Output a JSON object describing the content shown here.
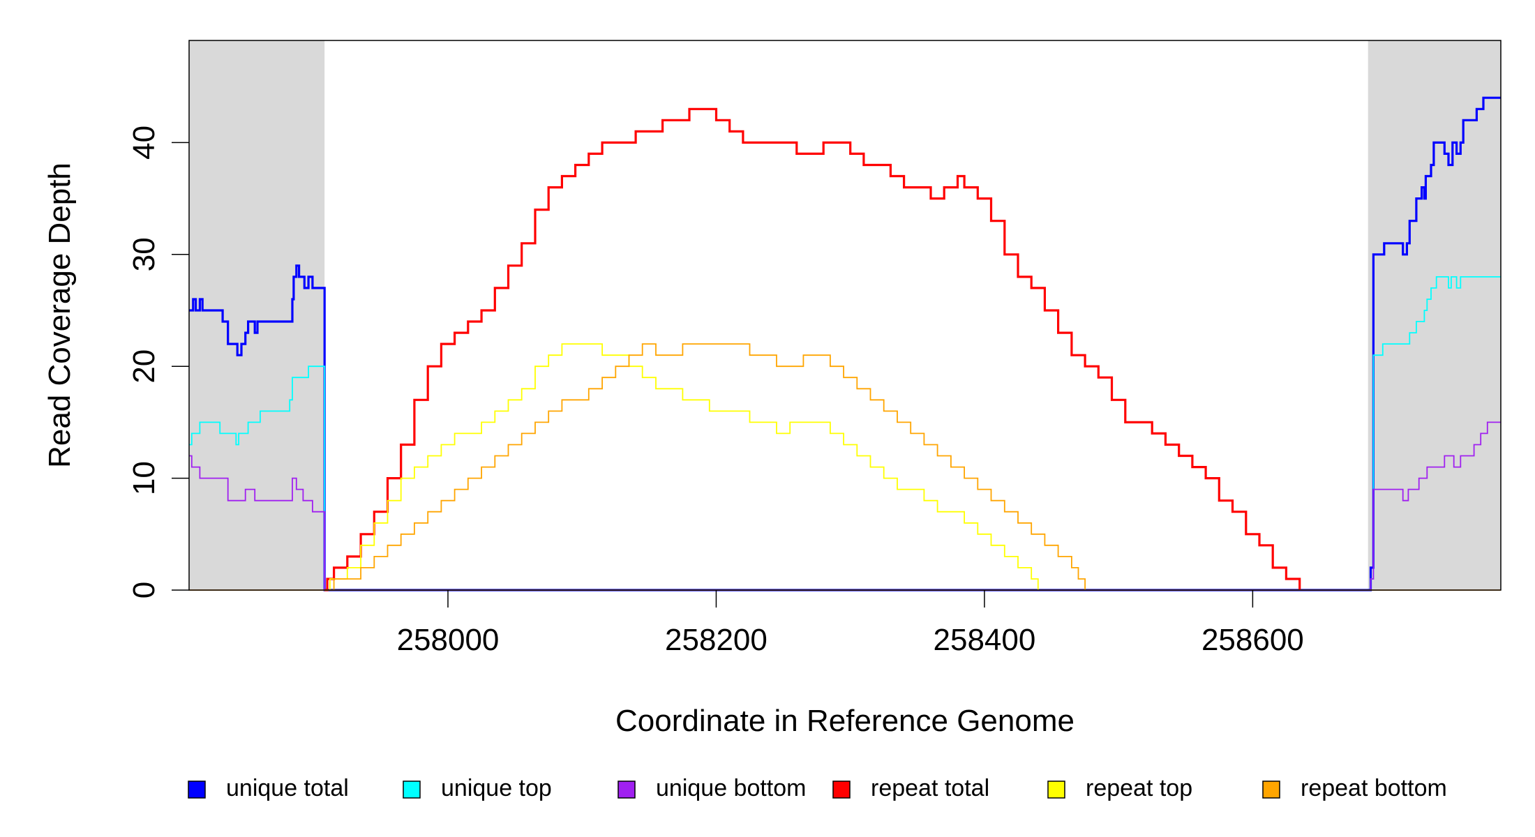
{
  "chart_data": {
    "type": "line",
    "step": true,
    "xlabel": "Coordinate in Reference Genome",
    "ylabel": "Read Coverage Depth",
    "xlim": [
      257807,
      258785
    ],
    "ylim": [
      0,
      49
    ],
    "x_ticks": [
      258000,
      258200,
      258400,
      258600
    ],
    "y_ticks": [
      0,
      10,
      20,
      30,
      40
    ],
    "shaded_regions": [
      {
        "from": 257807,
        "to": 257908,
        "color": "#d9d9d9"
      },
      {
        "from": 258686,
        "to": 258785,
        "color": "#d9d9d9"
      }
    ],
    "legend_position": "bottom",
    "series": [
      {
        "name": "unique total",
        "color": "#0000ff",
        "points": [
          [
            257807,
            25
          ],
          [
            257810,
            26
          ],
          [
            257812,
            25
          ],
          [
            257815,
            26
          ],
          [
            257817,
            25
          ],
          [
            257830,
            25
          ],
          [
            257832,
            24
          ],
          [
            257836,
            22
          ],
          [
            257843,
            21
          ],
          [
            257846,
            22
          ],
          [
            257849,
            23
          ],
          [
            257851,
            24
          ],
          [
            257856,
            23
          ],
          [
            257858,
            24
          ],
          [
            257882,
            24
          ],
          [
            257884,
            26
          ],
          [
            257885,
            28
          ],
          [
            257887,
            29
          ],
          [
            257889,
            28
          ],
          [
            257893,
            27
          ],
          [
            257896,
            28
          ],
          [
            257899,
            27
          ],
          [
            257902,
            27
          ],
          [
            257907,
            27
          ],
          [
            257908,
            0
          ],
          [
            258686,
            0
          ],
          [
            258688,
            2
          ],
          [
            258690,
            30
          ],
          [
            258695,
            30
          ],
          [
            258698,
            31
          ],
          [
            258710,
            31
          ],
          [
            258712,
            30
          ],
          [
            258715,
            31
          ],
          [
            258717,
            33
          ],
          [
            258720,
            33
          ],
          [
            258722,
            35
          ],
          [
            258726,
            36
          ],
          [
            258728,
            35
          ],
          [
            258729,
            37
          ],
          [
            258733,
            38
          ],
          [
            258735,
            40
          ],
          [
            258743,
            39
          ],
          [
            258746,
            38
          ],
          [
            258749,
            40
          ],
          [
            258752,
            39
          ],
          [
            258755,
            40
          ],
          [
            258757,
            42
          ],
          [
            258760,
            42
          ],
          [
            258765,
            42
          ],
          [
            258767,
            43
          ],
          [
            258770,
            43
          ],
          [
            258772,
            44
          ],
          [
            258775,
            44
          ],
          [
            258785,
            44
          ]
        ]
      },
      {
        "name": "unique top",
        "color": "#00ffff",
        "points": [
          [
            257807,
            13
          ],
          [
            257809,
            14
          ],
          [
            257815,
            15
          ],
          [
            257830,
            14
          ],
          [
            257842,
            13
          ],
          [
            257844,
            14
          ],
          [
            257851,
            15
          ],
          [
            257860,
            16
          ],
          [
            257882,
            17
          ],
          [
            257884,
            19
          ],
          [
            257896,
            20
          ],
          [
            257907,
            20
          ],
          [
            257908,
            0
          ],
          [
            258686,
            0
          ],
          [
            258688,
            1
          ],
          [
            258690,
            21
          ],
          [
            258697,
            22
          ],
          [
            258717,
            23
          ],
          [
            258722,
            24
          ],
          [
            258728,
            25
          ],
          [
            258730,
            26
          ],
          [
            258733,
            27
          ],
          [
            258737,
            28
          ],
          [
            258746,
            27
          ],
          [
            258748,
            28
          ],
          [
            258752,
            27
          ],
          [
            258755,
            28
          ],
          [
            258785,
            28
          ]
        ]
      },
      {
        "name": "unique bottom",
        "color": "#a020f0",
        "points": [
          [
            257807,
            12
          ],
          [
            257809,
            11
          ],
          [
            257815,
            10
          ],
          [
            257836,
            8
          ],
          [
            257849,
            9
          ],
          [
            257856,
            8
          ],
          [
            257882,
            8
          ],
          [
            257884,
            10
          ],
          [
            257887,
            9
          ],
          [
            257892,
            8
          ],
          [
            257899,
            7
          ],
          [
            257907,
            7
          ],
          [
            257908,
            0
          ],
          [
            258686,
            0
          ],
          [
            258688,
            1
          ],
          [
            258690,
            9
          ],
          [
            258710,
            9
          ],
          [
            258712,
            8
          ],
          [
            258716,
            9
          ],
          [
            258724,
            10
          ],
          [
            258730,
            11
          ],
          [
            258743,
            12
          ],
          [
            258750,
            11
          ],
          [
            258755,
            12
          ],
          [
            258765,
            13
          ],
          [
            258770,
            14
          ],
          [
            258775,
            15
          ],
          [
            258785,
            15
          ]
        ]
      },
      {
        "name": "repeat total",
        "color": "#ff0000",
        "points": [
          [
            257908,
            0
          ],
          [
            257910,
            1
          ],
          [
            257915,
            2
          ],
          [
            257925,
            3
          ],
          [
            257935,
            5
          ],
          [
            257945,
            7
          ],
          [
            257955,
            10
          ],
          [
            257965,
            13
          ],
          [
            257975,
            17
          ],
          [
            257985,
            20
          ],
          [
            257995,
            22
          ],
          [
            258005,
            23
          ],
          [
            258015,
            24
          ],
          [
            258025,
            25
          ],
          [
            258035,
            27
          ],
          [
            258045,
            29
          ],
          [
            258055,
            31
          ],
          [
            258065,
            34
          ],
          [
            258075,
            36
          ],
          [
            258085,
            37
          ],
          [
            258095,
            38
          ],
          [
            258105,
            39
          ],
          [
            258115,
            40
          ],
          [
            258130,
            40
          ],
          [
            258140,
            41
          ],
          [
            258150,
            41
          ],
          [
            258160,
            42
          ],
          [
            258170,
            42
          ],
          [
            258180,
            43
          ],
          [
            258190,
            43
          ],
          [
            258200,
            42
          ],
          [
            258210,
            41
          ],
          [
            258220,
            40
          ],
          [
            258230,
            40
          ],
          [
            258240,
            40
          ],
          [
            258250,
            40
          ],
          [
            258260,
            39
          ],
          [
            258270,
            39
          ],
          [
            258280,
            40
          ],
          [
            258290,
            40
          ],
          [
            258300,
            39
          ],
          [
            258310,
            38
          ],
          [
            258320,
            38
          ],
          [
            258330,
            37
          ],
          [
            258340,
            36
          ],
          [
            258350,
            36
          ],
          [
            258360,
            35
          ],
          [
            258370,
            36
          ],
          [
            258380,
            37
          ],
          [
            258385,
            36
          ],
          [
            258395,
            35
          ],
          [
            258405,
            33
          ],
          [
            258415,
            30
          ],
          [
            258425,
            28
          ],
          [
            258435,
            27
          ],
          [
            258445,
            25
          ],
          [
            258455,
            23
          ],
          [
            258465,
            21
          ],
          [
            258475,
            20
          ],
          [
            258485,
            19
          ],
          [
            258495,
            17
          ],
          [
            258505,
            15
          ],
          [
            258515,
            15
          ],
          [
            258525,
            14
          ],
          [
            258535,
            13
          ],
          [
            258545,
            12
          ],
          [
            258555,
            11
          ],
          [
            258565,
            10
          ],
          [
            258575,
            8
          ],
          [
            258585,
            7
          ],
          [
            258595,
            5
          ],
          [
            258605,
            4
          ],
          [
            258615,
            2
          ],
          [
            258625,
            1
          ],
          [
            258635,
            0
          ]
        ]
      },
      {
        "name": "repeat top",
        "color": "#ffff00",
        "points": [
          [
            257908,
            0
          ],
          [
            257912,
            1
          ],
          [
            257925,
            2
          ],
          [
            257935,
            4
          ],
          [
            257945,
            6
          ],
          [
            257955,
            8
          ],
          [
            257965,
            10
          ],
          [
            257975,
            11
          ],
          [
            257985,
            12
          ],
          [
            257995,
            13
          ],
          [
            258005,
            14
          ],
          [
            258015,
            14
          ],
          [
            258025,
            15
          ],
          [
            258035,
            16
          ],
          [
            258045,
            17
          ],
          [
            258055,
            18
          ],
          [
            258065,
            20
          ],
          [
            258075,
            21
          ],
          [
            258085,
            22
          ],
          [
            258095,
            22
          ],
          [
            258105,
            22
          ],
          [
            258115,
            21
          ],
          [
            258125,
            21
          ],
          [
            258135,
            20
          ],
          [
            258145,
            19
          ],
          [
            258155,
            18
          ],
          [
            258165,
            18
          ],
          [
            258175,
            17
          ],
          [
            258185,
            17
          ],
          [
            258195,
            16
          ],
          [
            258205,
            16
          ],
          [
            258215,
            16
          ],
          [
            258225,
            15
          ],
          [
            258235,
            15
          ],
          [
            258245,
            14
          ],
          [
            258255,
            15
          ],
          [
            258265,
            15
          ],
          [
            258275,
            15
          ],
          [
            258285,
            14
          ],
          [
            258295,
            13
          ],
          [
            258305,
            12
          ],
          [
            258315,
            11
          ],
          [
            258325,
            10
          ],
          [
            258335,
            9
          ],
          [
            258345,
            9
          ],
          [
            258355,
            8
          ],
          [
            258365,
            7
          ],
          [
            258375,
            7
          ],
          [
            258385,
            6
          ],
          [
            258395,
            5
          ],
          [
            258405,
            4
          ],
          [
            258415,
            3
          ],
          [
            258425,
            2
          ],
          [
            258435,
            1
          ],
          [
            258440,
            0
          ]
        ]
      },
      {
        "name": "repeat bottom",
        "color": "#ffa500",
        "points": [
          [
            257908,
            0
          ],
          [
            257915,
            1
          ],
          [
            257925,
            1
          ],
          [
            257935,
            2
          ],
          [
            257945,
            3
          ],
          [
            257955,
            4
          ],
          [
            257965,
            5
          ],
          [
            257975,
            6
          ],
          [
            257985,
            7
          ],
          [
            257995,
            8
          ],
          [
            258005,
            9
          ],
          [
            258015,
            10
          ],
          [
            258025,
            11
          ],
          [
            258035,
            12
          ],
          [
            258045,
            13
          ],
          [
            258055,
            14
          ],
          [
            258065,
            15
          ],
          [
            258075,
            16
          ],
          [
            258085,
            17
          ],
          [
            258095,
            17
          ],
          [
            258105,
            18
          ],
          [
            258115,
            19
          ],
          [
            258125,
            20
          ],
          [
            258135,
            21
          ],
          [
            258145,
            22
          ],
          [
            258155,
            21
          ],
          [
            258165,
            21
          ],
          [
            258175,
            22
          ],
          [
            258185,
            22
          ],
          [
            258195,
            22
          ],
          [
            258205,
            22
          ],
          [
            258215,
            22
          ],
          [
            258225,
            21
          ],
          [
            258235,
            21
          ],
          [
            258245,
            20
          ],
          [
            258255,
            20
          ],
          [
            258265,
            21
          ],
          [
            258275,
            21
          ],
          [
            258285,
            20
          ],
          [
            258295,
            19
          ],
          [
            258305,
            18
          ],
          [
            258315,
            17
          ],
          [
            258325,
            16
          ],
          [
            258335,
            15
          ],
          [
            258345,
            14
          ],
          [
            258355,
            13
          ],
          [
            258365,
            12
          ],
          [
            258375,
            11
          ],
          [
            258385,
            10
          ],
          [
            258395,
            9
          ],
          [
            258405,
            8
          ],
          [
            258415,
            7
          ],
          [
            258425,
            6
          ],
          [
            258435,
            5
          ],
          [
            258445,
            4
          ],
          [
            258455,
            3
          ],
          [
            258465,
            2
          ],
          [
            258470,
            1
          ],
          [
            258475,
            0
          ]
        ]
      }
    ]
  }
}
